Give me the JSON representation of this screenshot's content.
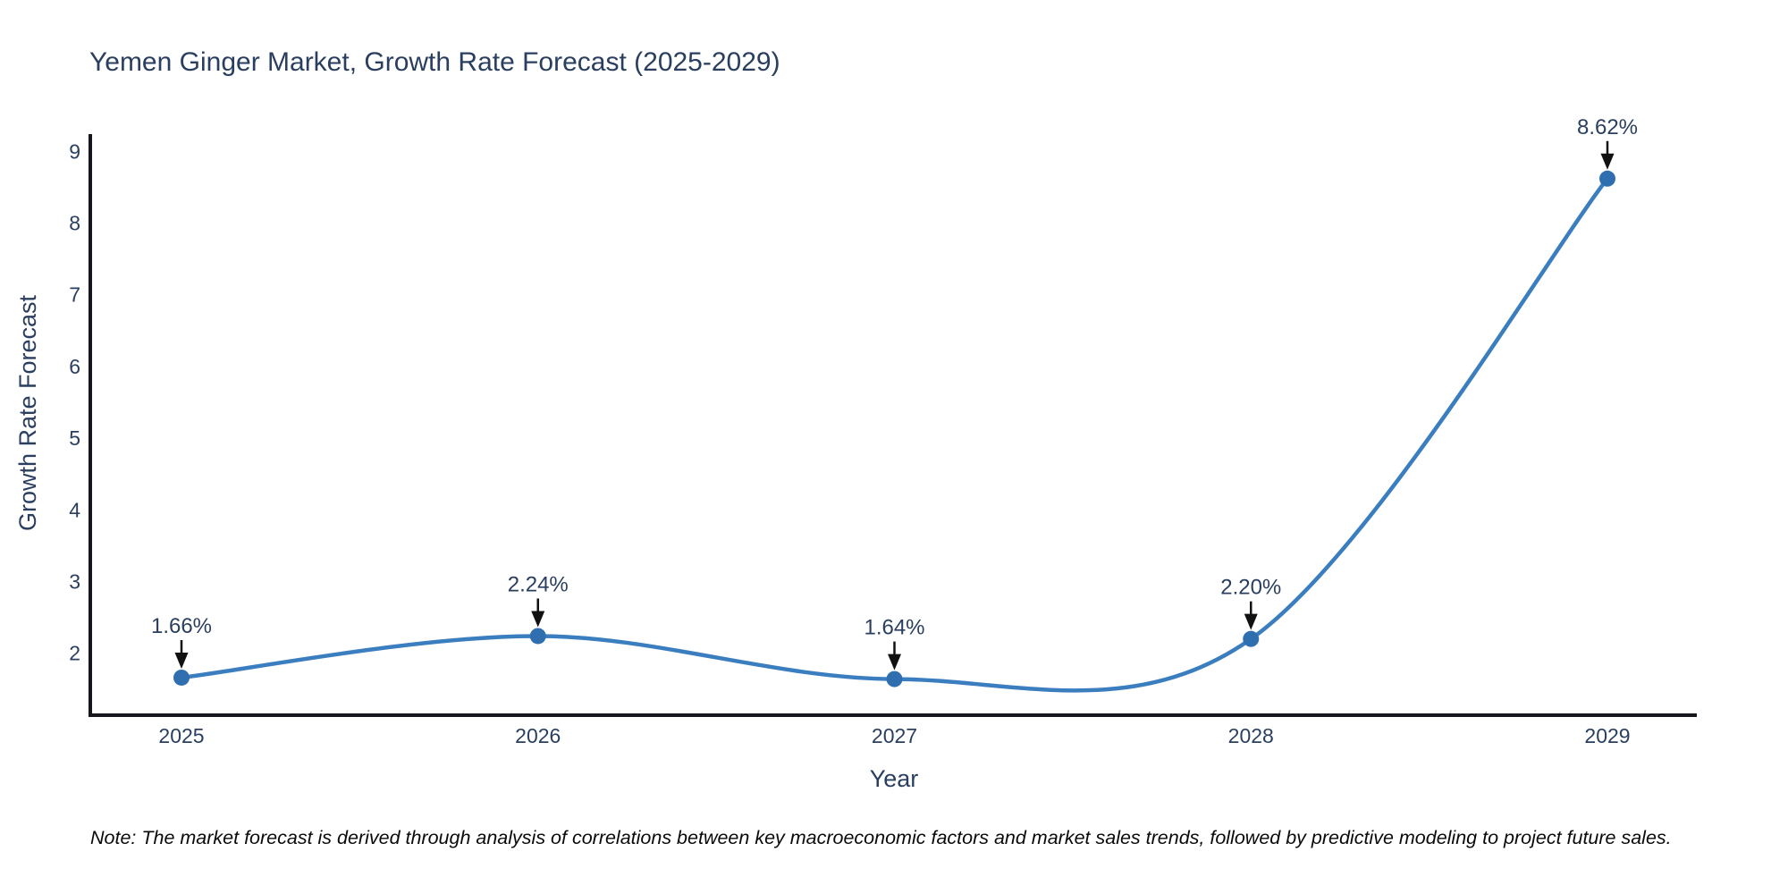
{
  "chart": {
    "title": "Yemen Ginger Market, Growth Rate Forecast (2025-2029)"
  },
  "note": {
    "text": "Note: The market forecast is derived through analysis of correlations between key macroeconomic factors and market sales trends, followed by predictive modeling to project future sales."
  },
  "chart_data": {
    "type": "line",
    "title": "Yemen Ginger Market, Growth Rate Forecast (2025-2029)",
    "xlabel": "Year",
    "ylabel": "Growth Rate Forecast",
    "categories": [
      "2025",
      "2026",
      "2027",
      "2028",
      "2029"
    ],
    "x": [
      2025,
      2026,
      2027,
      2028,
      2029
    ],
    "series": [
      {
        "name": "Growth Rate Forecast",
        "values": [
          1.66,
          2.24,
          1.64,
          2.2,
          8.62
        ]
      }
    ],
    "point_labels": [
      "1.66%",
      "2.24%",
      "1.64%",
      "2.20%",
      "8.62%"
    ],
    "yticks": [
      2,
      3,
      4,
      5,
      6,
      7,
      8,
      9
    ],
    "ylim": [
      1.14,
      9.24
    ],
    "line_shape": "spline",
    "grid": false,
    "legend": "none",
    "line_color": "#3b7ec0",
    "marker_color": "#2f6fb0",
    "axis_color": "#16161d",
    "text_color": "#2a3f5f",
    "annotation_arrow_color": "#111111",
    "background_color": "#ffffff"
  }
}
